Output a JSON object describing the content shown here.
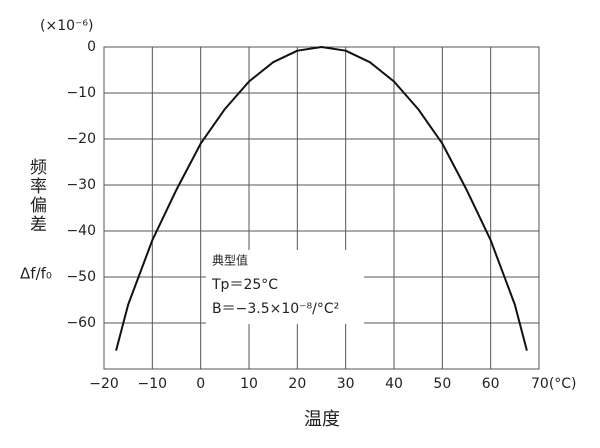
{
  "chart_data": {
    "type": "line",
    "unit_label": "(×10⁻⁶)",
    "y_label": "频率偏差",
    "y_sublabel": "Δf/f₀",
    "x_label": "温度",
    "x": [
      -17.5,
      -15,
      -10,
      -5,
      0,
      5,
      10,
      15,
      20,
      25,
      30,
      35,
      40,
      45,
      50,
      55,
      60,
      65,
      67.5
    ],
    "series": [
      {
        "color": "#111111",
        "values": [
          -66,
          -56,
          -42,
          -31,
          -21,
          -13.5,
          -7.5,
          -3.3,
          -0.8,
          0,
          -0.8,
          -3.3,
          -7.5,
          -13.5,
          -21,
          -31,
          -42,
          -56,
          -66
        ]
      }
    ],
    "xlim": [
      -20,
      70
    ],
    "xticks": [
      {
        "value": -20,
        "label": "−20"
      },
      {
        "value": -10,
        "label": "−10"
      },
      0,
      10,
      20,
      30,
      40,
      50,
      60,
      {
        "value": 70,
        "label": "70(°C)"
      }
    ],
    "ylim": [
      -70,
      0
    ],
    "yticks": [
      0,
      {
        "value": -10,
        "label": "−10"
      },
      {
        "value": -20,
        "label": "−20"
      },
      {
        "value": -30,
        "label": "−30"
      },
      {
        "value": -40,
        "label": "−40"
      },
      {
        "value": -50,
        "label": "−50"
      },
      {
        "value": -60,
        "label": "−60"
      }
    ],
    "grid": true,
    "annotation": [
      "典型值",
      "Tp＝25°C",
      "B＝−3.5×10⁻⁸/°C²"
    ]
  }
}
